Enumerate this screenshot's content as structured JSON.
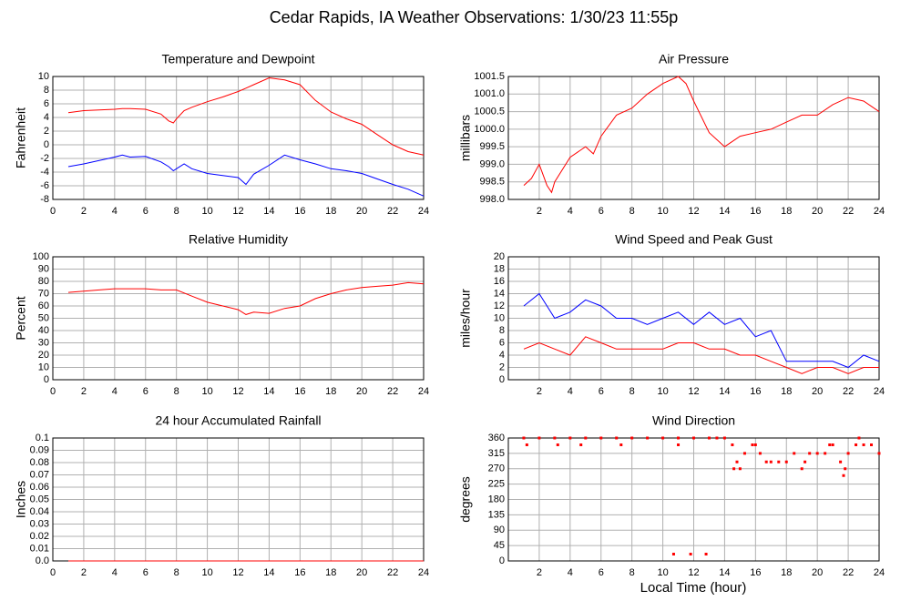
{
  "title": "Cedar Rapids, IA Weather Observations: 1/30/23 11:55p",
  "xlabel": "Local Time (hour)",
  "chart_data": [
    {
      "type": "line",
      "title": "Temperature and Dewpoint",
      "ylabel": "Fahrenheit",
      "x": [
        1,
        2,
        3,
        4,
        4.5,
        5,
        6,
        7,
        7.5,
        7.8,
        8,
        8.5,
        9,
        10,
        11,
        12,
        12.5,
        13,
        14,
        15,
        16,
        17,
        18,
        19,
        20,
        21,
        22,
        23,
        24
      ],
      "series": [
        {
          "color": "#ff0000",
          "values": [
            4.7,
            5.0,
            5.1,
            5.2,
            5.3,
            5.3,
            5.2,
            4.5,
            3.5,
            3.2,
            3.8,
            5.0,
            5.5,
            6.3,
            7.0,
            7.8,
            8.3,
            8.8,
            9.8,
            9.5,
            8.8,
            6.5,
            4.8,
            3.8,
            3.0,
            1.5,
            0.0,
            -1.0,
            -1.5
          ]
        },
        {
          "color": "#0000ff",
          "values": [
            -3.2,
            -2.8,
            -2.3,
            -1.8,
            -1.5,
            -1.8,
            -1.7,
            -2.5,
            -3.2,
            -3.8,
            -3.5,
            -2.8,
            -3.5,
            -4.2,
            -4.5,
            -4.8,
            -5.8,
            -4.3,
            -3.0,
            -1.5,
            -2.2,
            -2.8,
            -3.5,
            -3.8,
            -4.2,
            -5.0,
            -5.8,
            -6.5,
            -7.5
          ]
        }
      ],
      "xlim": [
        0,
        24
      ],
      "xticks": [
        0,
        2,
        4,
        6,
        8,
        10,
        12,
        14,
        16,
        18,
        20,
        22,
        24
      ],
      "ylim": [
        -8,
        10
      ],
      "yticks": [
        -8,
        -6,
        -4,
        -2,
        0,
        2,
        4,
        6,
        8,
        10
      ],
      "grid": true
    },
    {
      "type": "line",
      "title": "Air Pressure",
      "ylabel": "millibars",
      "x": [
        1,
        1.5,
        2,
        2.5,
        2.8,
        3,
        4,
        5,
        5.5,
        6,
        7,
        8,
        9,
        10,
        11,
        11.5,
        12,
        13,
        14,
        15,
        16,
        17,
        18,
        19,
        20,
        21,
        22,
        23,
        24
      ],
      "series": [
        {
          "color": "#ff0000",
          "values": [
            998.4,
            998.6,
            999.0,
            998.4,
            998.2,
            998.5,
            999.2,
            999.5,
            999.3,
            999.8,
            1000.4,
            1000.6,
            1001.0,
            1001.3,
            1001.5,
            1001.3,
            1000.8,
            999.9,
            999.5,
            999.8,
            999.9,
            1000.0,
            1000.2,
            1000.4,
            1000.4,
            1000.7,
            1000.9,
            1000.8,
            1000.5
          ]
        }
      ],
      "xlim": [
        0,
        24
      ],
      "xticks": [
        2,
        4,
        6,
        8,
        10,
        12,
        14,
        16,
        18,
        20,
        22,
        24
      ],
      "ylim": [
        998,
        1001.5
      ],
      "yticks": [
        {
          "value": 998,
          "label": "998.0"
        },
        998.5,
        {
          "value": 999,
          "label": "999.0"
        },
        999.5,
        {
          "value": 1000,
          "label": "1000.0"
        },
        1000.5,
        {
          "value": 1001,
          "label": "1001.0"
        },
        1001.5
      ],
      "grid": true
    },
    {
      "type": "line",
      "title": "Relative Humidity",
      "ylabel": "Percent",
      "x": [
        1,
        2,
        3,
        4,
        5,
        6,
        7,
        8,
        9,
        10,
        11,
        12,
        12.5,
        13,
        14,
        15,
        16,
        17,
        18,
        19,
        20,
        21,
        22,
        23,
        24
      ],
      "series": [
        {
          "color": "#ff0000",
          "values": [
            71,
            72,
            73,
            74,
            74,
            74,
            73,
            73,
            68,
            63,
            60,
            57,
            53,
            55,
            54,
            58,
            60,
            66,
            70,
            73,
            75,
            76,
            77,
            79,
            78
          ]
        }
      ],
      "xlim": [
        0,
        24
      ],
      "xticks": [
        0,
        2,
        4,
        6,
        8,
        10,
        12,
        14,
        16,
        18,
        20,
        22,
        24
      ],
      "ylim": [
        0,
        100
      ],
      "yticks": [
        0,
        10,
        20,
        30,
        40,
        50,
        60,
        70,
        80,
        90,
        100
      ],
      "grid": true
    },
    {
      "type": "line",
      "title": "Wind Speed and Peak Gust",
      "ylabel": "miles/hour",
      "x": [
        1,
        2,
        3,
        4,
        5,
        6,
        7,
        8,
        9,
        10,
        11,
        12,
        13,
        14,
        15,
        16,
        17,
        18,
        19,
        20,
        21,
        22,
        23,
        24
      ],
      "series": [
        {
          "color": "#ff0000",
          "values": [
            5,
            6,
            5,
            4,
            7,
            6,
            5,
            5,
            5,
            5,
            6,
            6,
            5,
            5,
            4,
            4,
            3,
            2,
            1,
            2,
            2,
            1,
            2,
            2
          ]
        },
        {
          "color": "#0000ff",
          "values": [
            12,
            14,
            10,
            11,
            13,
            12,
            10,
            10,
            9,
            10,
            11,
            9,
            11,
            9,
            10,
            7,
            8,
            3,
            3,
            3,
            3,
            2,
            4,
            3
          ]
        }
      ],
      "xlim": [
        0,
        24
      ],
      "xticks": [
        2,
        4,
        6,
        8,
        10,
        12,
        14,
        16,
        18,
        20,
        22,
        24
      ],
      "ylim": [
        0,
        20
      ],
      "yticks": [
        0,
        2,
        4,
        6,
        8,
        10,
        12,
        14,
        16,
        18,
        20
      ],
      "grid": true
    },
    {
      "type": "line",
      "title": "24 hour Accumulated Rainfall",
      "ylabel": "Inches",
      "x": [
        1,
        24
      ],
      "series": [
        {
          "color": "#ff0000",
          "values": [
            0,
            0
          ]
        }
      ],
      "xlim": [
        0,
        24
      ],
      "xticks": [
        0,
        2,
        4,
        6,
        8,
        10,
        12,
        14,
        16,
        18,
        20,
        22,
        24
      ],
      "ylim": [
        0,
        0.1
      ],
      "yticks": [
        {
          "value": 0,
          "label": "0.0"
        },
        0.01,
        0.02,
        0.03,
        0.04,
        0.05,
        0.06,
        0.07,
        0.08,
        0.09,
        0.1
      ],
      "grid": true
    },
    {
      "type": "scatter",
      "title": "Wind Direction",
      "ylabel": "degrees",
      "x": [
        1,
        1.2,
        2,
        3,
        3.2,
        4,
        4.7,
        5,
        6,
        7,
        7.3,
        8,
        9,
        10,
        10.7,
        11,
        11,
        11.8,
        12,
        12.8,
        13,
        13.5,
        14,
        14.5,
        14.6,
        14.8,
        15,
        15.3,
        15.8,
        16,
        16.3,
        16.7,
        17,
        17.5,
        18,
        18.5,
        19,
        19.2,
        19.5,
        20,
        20.5,
        20.8,
        21,
        21.5,
        21.7,
        21.8,
        22,
        22.5,
        22.7,
        23,
        23.5,
        24
      ],
      "series": [
        {
          "color": "#ff0000",
          "values": [
            360,
            340,
            360,
            360,
            340,
            360,
            340,
            360,
            360,
            360,
            340,
            360,
            360,
            360,
            20,
            360,
            340,
            20,
            360,
            20,
            360,
            360,
            360,
            340,
            270,
            290,
            270,
            315,
            340,
            340,
            315,
            290,
            290,
            290,
            290,
            315,
            270,
            290,
            315,
            315,
            315,
            340,
            340,
            290,
            250,
            270,
            315,
            340,
            360,
            340,
            340,
            315
          ]
        }
      ],
      "xlim": [
        0,
        24
      ],
      "xticks": [
        2,
        4,
        6,
        8,
        10,
        12,
        14,
        16,
        18,
        20,
        22,
        24
      ],
      "ylim": [
        0,
        360
      ],
      "yticks": [
        0,
        45,
        90,
        135,
        180,
        225,
        270,
        315,
        360
      ],
      "grid": true
    }
  ]
}
